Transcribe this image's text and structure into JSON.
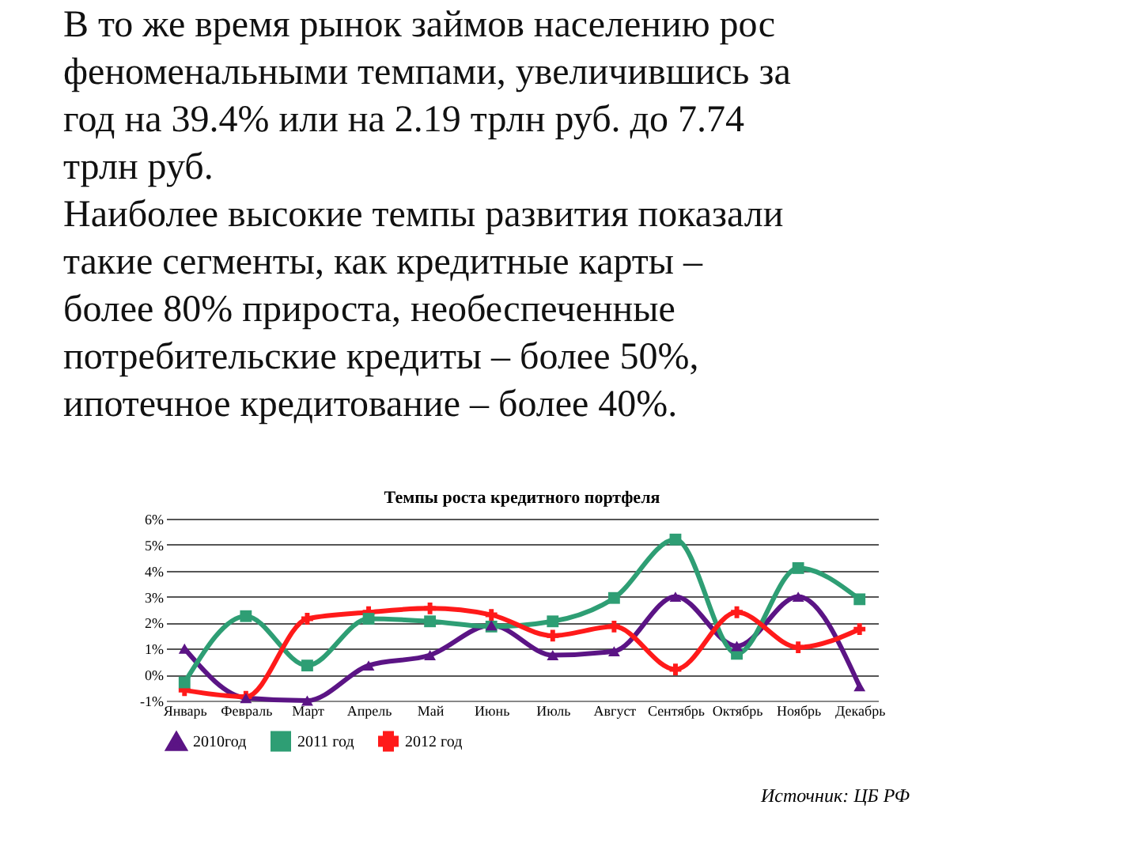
{
  "chart_data": {
    "type": "line",
    "title": "Темпы роста кредитного портфеля",
    "categories": [
      "Январь",
      "Февраль",
      "Март",
      "Апрель",
      "Май",
      "Июнь",
      "Июль",
      "Август",
      "Сентябрь",
      "Октябрь",
      "Ноябрь",
      "Декабрь"
    ],
    "series": [
      {
        "name": "2010год",
        "color": "#5b1485",
        "marker": "triangle",
        "values": [
          1.0,
          -0.9,
          -1.0,
          0.35,
          0.75,
          1.9,
          0.75,
          0.9,
          3.0,
          1.1,
          3.0,
          -0.45
        ]
      },
      {
        "name": "2011 год",
        "color": "#2e9e74",
        "marker": "square",
        "values": [
          -0.3,
          2.25,
          0.35,
          2.15,
          2.05,
          1.85,
          2.05,
          2.95,
          5.2,
          0.8,
          4.1,
          2.9
        ]
      },
      {
        "name": "2012 год",
        "color": "#ff1a1a",
        "marker": "cross",
        "values": [
          -0.6,
          -0.85,
          2.15,
          2.4,
          2.55,
          2.3,
          1.5,
          1.85,
          0.2,
          2.4,
          1.05,
          1.75
        ]
      }
    ],
    "ylim": [
      -1,
      6
    ],
    "yticks": [
      {
        "value": -1,
        "label": "-1%"
      },
      {
        "value": 0,
        "label": "0%"
      },
      {
        "value": 1,
        "label": "1%"
      },
      {
        "value": 2,
        "label": "2%"
      },
      {
        "value": 3,
        "label": "3%"
      },
      {
        "value": 4,
        "label": "4%"
      },
      {
        "value": 5,
        "label": "5%"
      },
      {
        "value": 6,
        "label": "6%"
      }
    ],
    "grid": "y",
    "legend": "bottom",
    "line_style": "solid",
    "annotations": [
      "В то же время рынок займов населению рос феноменальными темпами, увеличившись за год на 39.4% или на 2.19 трлн руб. до 7.74 трлн руб.",
      "Наиболее высокие темпы развития показали такие сегменты, как кредитные карты – более 80% прироста, необеспеченные потребительские кредиты – более 50%, ипотечное кредитование – более 40%.",
      "Источник: ЦБ РФ"
    ]
  }
}
